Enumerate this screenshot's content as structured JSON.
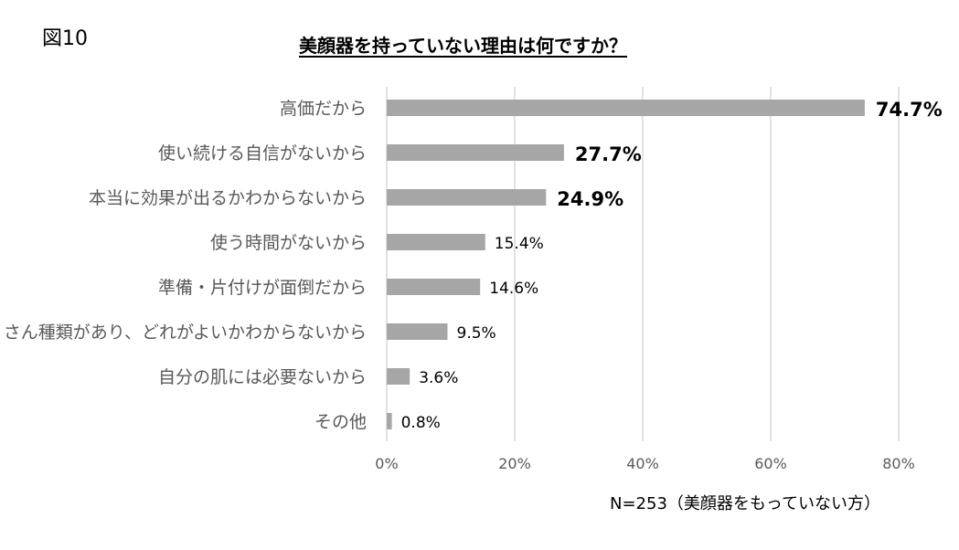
{
  "figure_label": "図10",
  "footnote": "N=253（美顔器をもっていない方）",
  "chart_data": {
    "type": "bar",
    "orientation": "horizontal",
    "title": "美顔器を持っていない理由は何ですか？",
    "categories": [
      "高価だから",
      "使い続ける自信がないから",
      "本当に効果が出るかわからないから",
      "使う時間がないから",
      "準備・片付けが面倒だから",
      "たくさん種類があり、どれがよいかわからないから",
      "自分の肌には必要ないから",
      "その他"
    ],
    "values": [
      74.7,
      27.7,
      24.9,
      15.4,
      14.6,
      9.5,
      3.6,
      0.8
    ],
    "data_labels": [
      "74.7%",
      "27.7%",
      "24.9%",
      "15.4%",
      "14.6%",
      "9.5%",
      "3.6%",
      "0.8%"
    ],
    "bold_labels": [
      true,
      true,
      true,
      false,
      false,
      false,
      false,
      false
    ],
    "xlim": [
      0,
      80
    ],
    "xticks": [
      0,
      20,
      40,
      60,
      80
    ],
    "xtick_labels": [
      "0%",
      "20%",
      "40%",
      "60%",
      "80%"
    ],
    "grid": true,
    "bar_color": "#a6a6a6",
    "grid_color": "#d9d9d9",
    "category_label_color": "#595959",
    "tick_label_color": "#595959"
  }
}
